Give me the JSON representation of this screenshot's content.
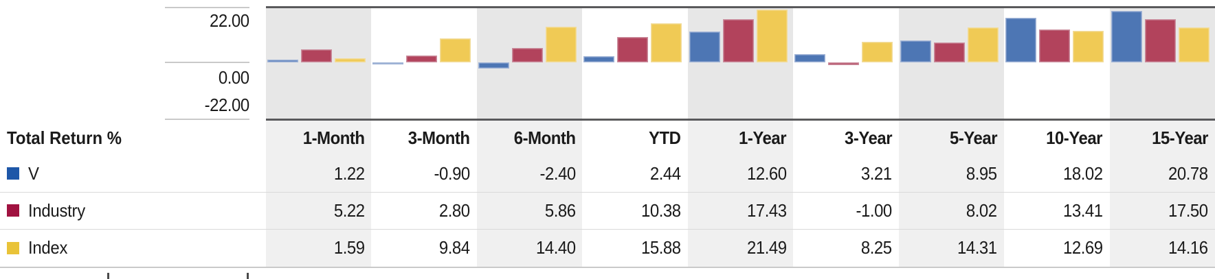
{
  "y_axis": {
    "labels": [
      "22.00",
      "0.00",
      "-22.00"
    ]
  },
  "table": {
    "title": "Total Return %",
    "columns": [
      "1-Month",
      "3-Month",
      "6-Month",
      "YTD",
      "1-Year",
      "3-Year",
      "5-Year",
      "10-Year",
      "15-Year"
    ],
    "rows": [
      {
        "label": "V",
        "swatch": "#1e57a8",
        "values": [
          "1.22",
          "-0.90",
          "-2.40",
          "2.44",
          "12.60",
          "3.21",
          "8.95",
          "18.02",
          "20.78"
        ]
      },
      {
        "label": "Industry",
        "swatch": "#a01240",
        "values": [
          "5.22",
          "2.80",
          "5.86",
          "10.38",
          "17.43",
          "-1.00",
          "8.02",
          "13.41",
          "17.50"
        ]
      },
      {
        "label": "Index",
        "swatch": "#e9c338",
        "values": [
          "1.59",
          "9.84",
          "14.40",
          "15.88",
          "21.49",
          "8.25",
          "14.31",
          "12.69",
          "14.16"
        ]
      }
    ]
  },
  "chart_data": {
    "type": "bar",
    "title": "Total Return %",
    "categories": [
      "1-Month",
      "3-Month",
      "6-Month",
      "YTD",
      "1-Year",
      "3-Year",
      "5-Year",
      "10-Year",
      "15-Year"
    ],
    "series": [
      {
        "name": "V",
        "color": "#4d76b4",
        "edge": "#9fb3d6",
        "values": [
          1.22,
          -0.9,
          -2.4,
          2.44,
          12.6,
          3.21,
          8.95,
          18.02,
          20.78
        ]
      },
      {
        "name": "Industry",
        "color": "#b2435c",
        "edge": "#cb8d9d",
        "values": [
          5.22,
          2.8,
          5.86,
          10.38,
          17.43,
          -1.0,
          8.02,
          13.41,
          17.5
        ]
      },
      {
        "name": "Index",
        "color": "#f0ca55",
        "edge": "#f2dc9b",
        "values": [
          1.59,
          9.84,
          14.4,
          15.88,
          21.49,
          8.25,
          14.31,
          12.69,
          14.16
        ]
      }
    ],
    "ylabel": "Total Return %",
    "ylim": [
      -23,
      23
    ],
    "yticks": [
      22,
      0,
      -22
    ],
    "grid": "off",
    "legend_position": "left-table-rows",
    "band_shading": {
      "shaded_columns": [
        "1-Month",
        "6-Month",
        "1-Year",
        "5-Year",
        "15-Year"
      ],
      "chart_band_color": "#e7e7e7",
      "table_band_color": "#f0f0f0"
    }
  },
  "colors": {
    "plot_border": "#59595b",
    "axis_tick": "#c9c9c9",
    "row_separator": "#d9d9d9",
    "text": "#1a1a1a"
  }
}
